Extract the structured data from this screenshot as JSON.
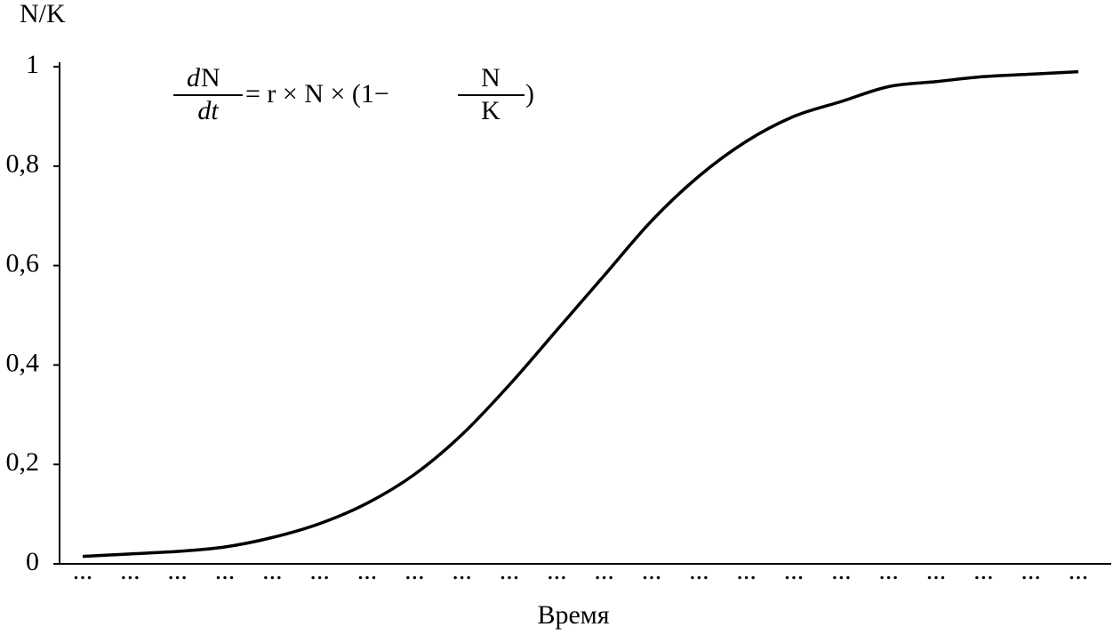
{
  "chart_data": {
    "type": "line",
    "y_label": "N/K",
    "x_label": "Время",
    "equation": {
      "lhs_numerator_italic": "d",
      "lhs_numerator": "N",
      "lhs_denominator": "dt",
      "rhs": "= r × N × (1−",
      "rhs_numerator": "N",
      "rhs_denominator": "K",
      "close": ")"
    },
    "categories": [
      "...",
      "...",
      "...",
      "...",
      "...",
      "...",
      "...",
      "...",
      "...",
      "...",
      "...",
      "...",
      "...",
      "...",
      "...",
      "...",
      "...",
      "...",
      "...",
      "...",
      "...",
      "..."
    ],
    "series": [
      {
        "name": "N/K",
        "color": "#000000",
        "values": [
          0.015,
          0.02,
          0.025,
          0.034,
          0.053,
          0.081,
          0.122,
          0.18,
          0.26,
          0.36,
          0.47,
          0.58,
          0.69,
          0.78,
          0.85,
          0.9,
          0.93,
          0.96,
          0.97,
          0.98,
          0.985,
          0.99
        ]
      }
    ],
    "ylim": [
      0,
      1
    ],
    "yticks": [
      0,
      {
        "value": 0.2,
        "label": "0,2"
      },
      {
        "value": 0.4,
        "label": "0,4"
      },
      {
        "value": 0.6,
        "label": "0,6"
      },
      {
        "value": 0.8,
        "label": "0,8"
      },
      1
    ],
    "grid": false
  }
}
